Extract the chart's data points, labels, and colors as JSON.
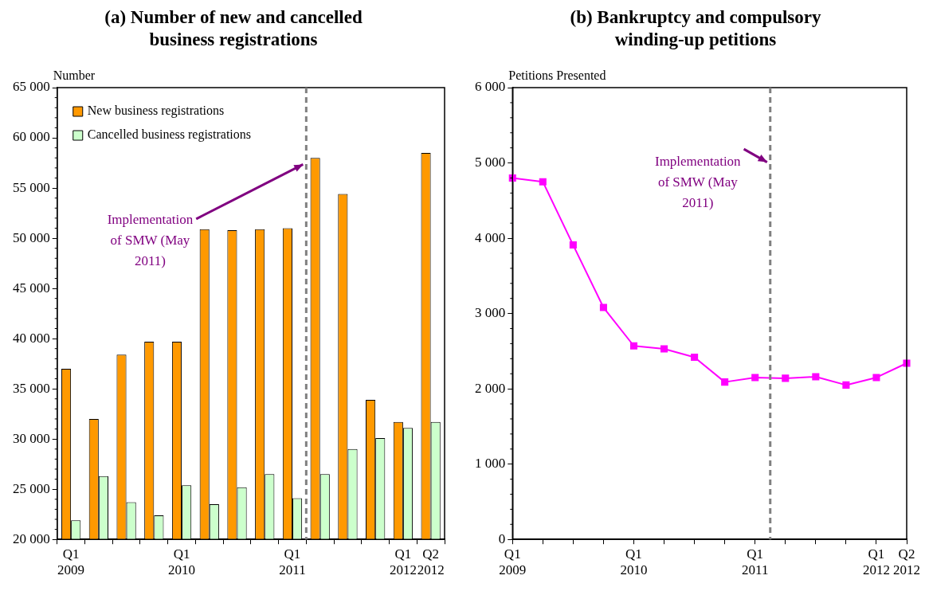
{
  "chart_data": [
    {
      "type": "bar",
      "title": "(a) Number of new and cancelled business registrations",
      "ylabel": "Number",
      "categories": [
        "Q1 2009",
        null,
        null,
        null,
        "Q1 2010",
        null,
        null,
        null,
        "Q1 2011",
        null,
        null,
        null,
        "Q1 2012",
        "Q2 2012"
      ],
      "series": [
        {
          "name": "New business registrations",
          "color": "#ff9900",
          "values": [
            37000,
            32000,
            38400,
            39700,
            39700,
            50900,
            50800,
            50900,
            51000,
            58000,
            54400,
            33900,
            31700,
            58500
          ]
        },
        {
          "name": "Cancelled business registrations",
          "color": "#ccffcc",
          "values": [
            21900,
            26300,
            23700,
            22400,
            25400,
            23500,
            25200,
            26500,
            24100,
            26500,
            29000,
            30100,
            31100,
            31700
          ]
        }
      ],
      "ylim": [
        20000,
        65000
      ],
      "yticks": [
        {
          "value": 20000,
          "label": "20 000"
        },
        {
          "value": 25000,
          "label": "25 000"
        },
        {
          "value": 30000,
          "label": "30 000"
        },
        {
          "value": 35000,
          "label": "35 000"
        },
        {
          "value": 40000,
          "label": "40 000"
        },
        {
          "value": 45000,
          "label": "45 000"
        },
        {
          "value": 50000,
          "label": "50 000"
        },
        {
          "value": 55000,
          "label": "55 000"
        },
        {
          "value": 60000,
          "label": "60 000"
        },
        {
          "value": 65000,
          "label": "65 000"
        }
      ],
      "annotations": [
        "Implementation of SMW (May 2011)"
      ],
      "legend": "top left",
      "grid": false
    },
    {
      "type": "line",
      "title": "(b) Bankruptcy and compulsory winding-up petitions",
      "ylabel": "Petitions Presented",
      "categories": [
        "Q1 2009",
        null,
        null,
        null,
        "Q1 2010",
        null,
        null,
        null,
        "Q1 2011",
        null,
        null,
        null,
        "Q1 2012",
        "Q2 2012"
      ],
      "series": [
        {
          "color": "#ff00ff",
          "values": [
            4800,
            4750,
            3910,
            3080,
            2570,
            2530,
            2420,
            2090,
            2150,
            2140,
            2160,
            2050,
            2150,
            2340
          ]
        }
      ],
      "ylim": [
        0,
        6000
      ],
      "yticks": [
        0,
        {
          "value": 1000,
          "label": "1 000"
        },
        {
          "value": 2000,
          "label": "2 000"
        },
        {
          "value": 3000,
          "label": "3 000"
        },
        {
          "value": 4000,
          "label": "4 000"
        },
        {
          "value": 5000,
          "label": "5 000"
        },
        {
          "value": 6000,
          "label": "6 000"
        }
      ],
      "annotations": [
        "Implementation of SMW (May 2011)"
      ],
      "marker": "square",
      "legend": false,
      "grid": false
    }
  ]
}
